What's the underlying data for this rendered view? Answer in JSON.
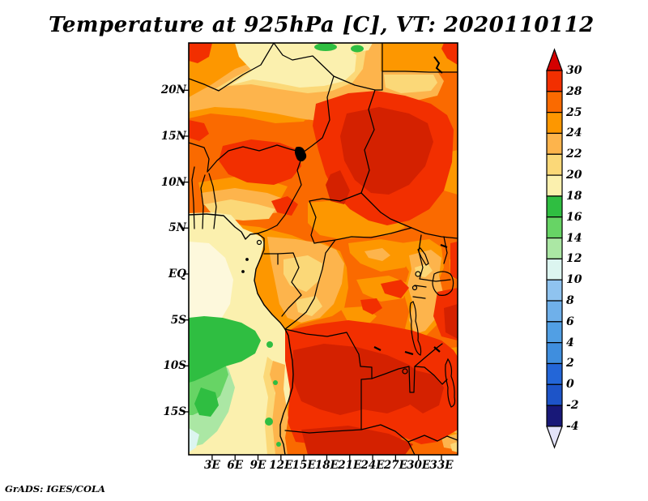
{
  "title": "Temperature at 925hPa [C], VT: 2020110112",
  "credit": "GrADS: IGES/COLA",
  "axes": {
    "lat_tick_labels": [
      "20N",
      "15N",
      "10N",
      "5N",
      "EQ",
      "5S",
      "10S",
      "15S"
    ],
    "lon_tick_labels": [
      "3E",
      "6E",
      "9E",
      "12E",
      "15E",
      "18E",
      "21E",
      "24E",
      "27E",
      "30E",
      "33E"
    ]
  },
  "colorbar": {
    "tick_labels": [
      "30",
      "28",
      "25",
      "24",
      "22",
      "20",
      "18",
      "16",
      "14",
      "12",
      "10",
      "8",
      "6",
      "4",
      "2",
      "0",
      "-2",
      "-4"
    ],
    "cell_colors_top_to_bottom": [
      "#F22F00",
      "#FA6A00",
      "#FD9700",
      "#FDB44C",
      "#FBD878",
      "#FBF0AE",
      "#2FBE41",
      "#67D465",
      "#ABE7A4",
      "#DCF5F0",
      "#8FC3EF",
      "#6FB0EA",
      "#519FE4",
      "#3F8EDE",
      "#2366D8",
      "#1D54C8",
      "#181878"
    ],
    "arrow_above_color": "#D40000",
    "arrow_below_color": "#E3E3F9"
  },
  "chart_data": {
    "type": "heatmap",
    "title": "Temperature at 925hPa [C], VT: 2020110112",
    "x_tick_labels": [
      "3E",
      "6E",
      "9E",
      "12E",
      "15E",
      "18E",
      "21E",
      "24E",
      "27E",
      "30E",
      "33E"
    ],
    "y_tick_labels": [
      "20N",
      "15N",
      "10N",
      "5N",
      "EQ",
      "5S",
      "10S",
      "15S"
    ],
    "domain": "Africa sector, approx 0E-35E and 20S-25N",
    "colorbar_levels_C": [
      30,
      28,
      25,
      24,
      22,
      20,
      18,
      16,
      14,
      12,
      10,
      8,
      6,
      4,
      2,
      0,
      -2,
      -4
    ],
    "value_range_visible_C": "about 12 C to above 30 C",
    "legend_position": "right",
    "field_summary": [
      "Hottest air (28 to >30 C, dark red) over the Chad-Sudan belt near 10-18N and over the Angola-Zambia interior near 8-17S",
      "Broad 24-28 C (orange/red-orange) over most of the Sahel, Central Africa and East Africa",
      "Cooler 18-22 C (pale yellow) band across the northern Sahara near 18-23N and along the Gulf of Guinea coast",
      "Coolest visible values 12-18 C (greens) over the southeast Atlantic ocean southwest of Angola",
      "Country borders and lakes (Victoria, Tanganyika, Malawi, Chad) drawn in black"
    ]
  }
}
